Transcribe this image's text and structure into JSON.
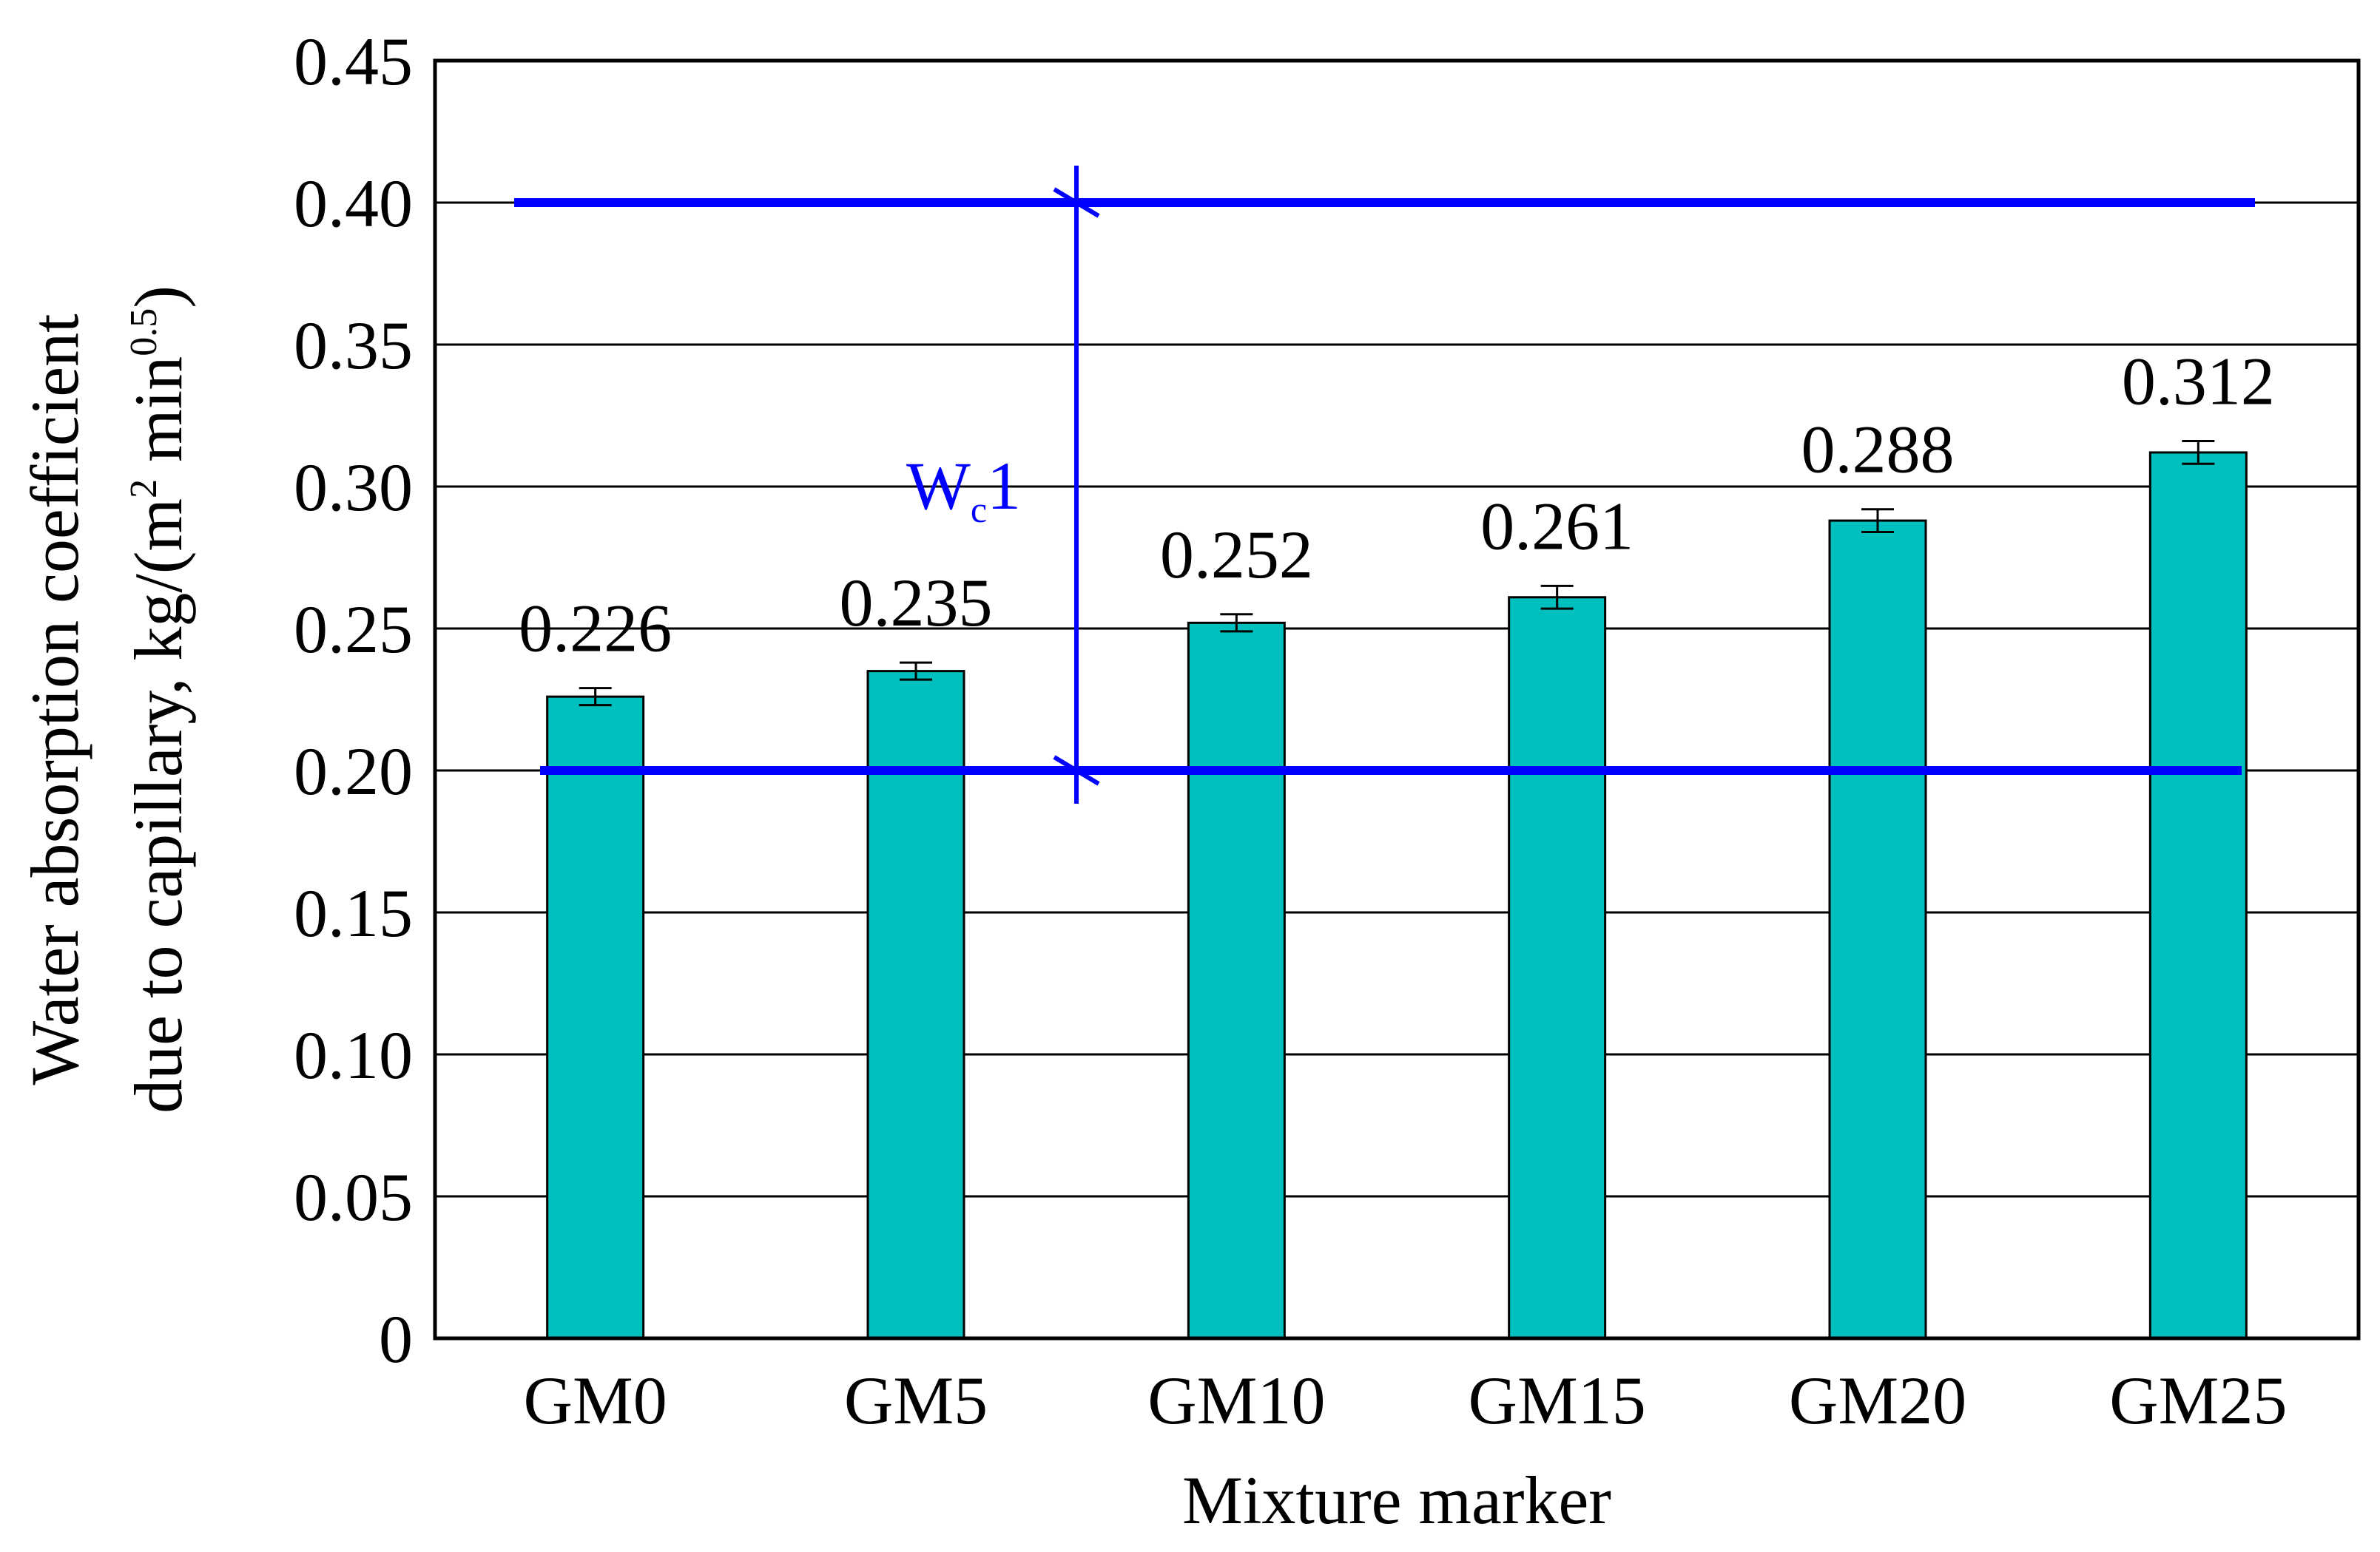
{
  "chart_data": {
    "type": "bar",
    "title": "",
    "xlabel": "Mixture marker",
    "ylabel": {
      "line1": "Water  absorption coefficient",
      "line2_main": "due to capillary, kg/(m",
      "line2_sup1": "2",
      "line2_mid": " min",
      "line2_sup2": "0.5",
      "line2_end": ")"
    },
    "categories": [
      "GM0",
      "GM5",
      "GM10",
      "GM15",
      "GM20",
      "GM25"
    ],
    "values": [
      0.226,
      0.235,
      0.252,
      0.261,
      0.288,
      0.312
    ],
    "value_labels": [
      "0.226",
      "0.235",
      "0.252",
      "0.261",
      "0.288",
      "0.312"
    ],
    "error_bars": [
      0.003,
      0.003,
      0.003,
      0.004,
      0.004,
      0.004
    ],
    "ylim": [
      0,
      0.45
    ],
    "yticks": [
      0,
      0.05,
      0.1,
      0.15,
      0.2,
      0.25,
      0.3,
      0.35,
      0.4,
      0.45
    ],
    "ytick_labels": [
      "0",
      "0.05",
      "0.10",
      "0.15",
      "0.20",
      "0.25",
      "0.30",
      "0.35",
      "0.40",
      "0.45"
    ],
    "grid": true,
    "reference_lines": [
      0.4,
      0.2
    ],
    "annotation": {
      "text_main": "W",
      "text_sub": "c",
      "text_end": "1",
      "range": [
        0.2,
        0.4
      ]
    },
    "colors": {
      "bar": "#00bfbf",
      "reference": "#0000ff",
      "grid": "#000000"
    }
  }
}
